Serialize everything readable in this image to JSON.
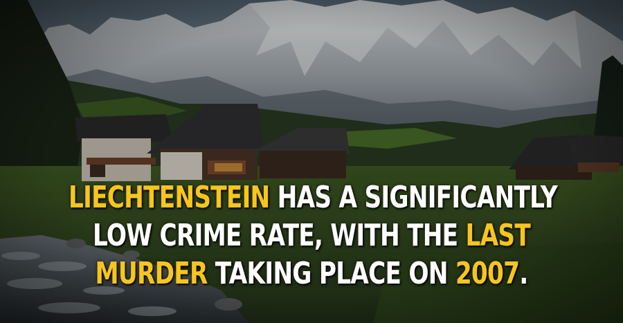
{
  "caption": {
    "line1": {
      "highlight": "LIECHTENSTEIN",
      "text": " HAS A SIGNIFICANTLY"
    },
    "line2": {
      "text": "LOW CRIME RATE, WITH THE ",
      "highlight": "LAST"
    },
    "line3": {
      "highlight": "MURDER",
      "text1": " TAKING PLACE ON ",
      "year": "2007",
      "text2": "."
    }
  },
  "colors": {
    "highlight": "#f7c51e",
    "text": "#ffffff"
  }
}
